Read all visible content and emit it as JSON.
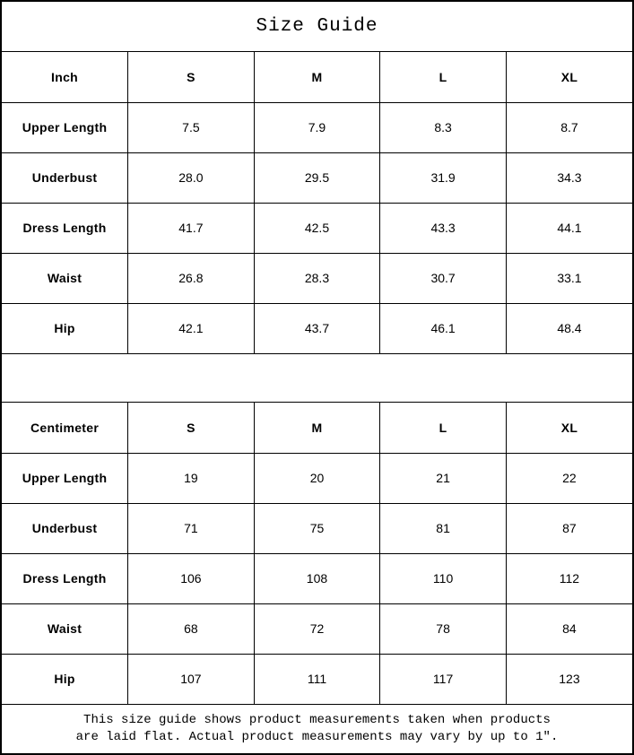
{
  "title": "Size Guide",
  "colors": {
    "background": "#ffffff",
    "border": "#000000",
    "text": "#000000"
  },
  "tables": [
    {
      "unit_label": "Inch",
      "columns": [
        "S",
        "M",
        "L",
        "XL"
      ],
      "rows": [
        {
          "label": "Upper Length",
          "values": [
            "7.5",
            "7.9",
            "8.3",
            "8.7"
          ]
        },
        {
          "label": "Underbust",
          "values": [
            "28.0",
            "29.5",
            "31.9",
            "34.3"
          ]
        },
        {
          "label": "Dress Length",
          "values": [
            "41.7",
            "42.5",
            "43.3",
            "44.1"
          ]
        },
        {
          "label": "Waist",
          "values": [
            "26.8",
            "28.3",
            "30.7",
            "33.1"
          ]
        },
        {
          "label": "Hip",
          "values": [
            "42.1",
            "43.7",
            "46.1",
            "48.4"
          ]
        }
      ]
    },
    {
      "unit_label": "Centimeter",
      "columns": [
        "S",
        "M",
        "L",
        "XL"
      ],
      "rows": [
        {
          "label": "Upper Length",
          "values": [
            "19",
            "20",
            "21",
            "22"
          ]
        },
        {
          "label": "Underbust",
          "values": [
            "71",
            "75",
            "81",
            "87"
          ]
        },
        {
          "label": "Dress Length",
          "values": [
            "106",
            "108",
            "110",
            "112"
          ]
        },
        {
          "label": "Waist",
          "values": [
            "68",
            "72",
            "78",
            "84"
          ]
        },
        {
          "label": "Hip",
          "values": [
            "107",
            "111",
            "117",
            "123"
          ]
        }
      ]
    }
  ],
  "footer": {
    "line1": "This size guide shows product measurements taken when products",
    "line2": "are laid flat. Actual product measurements may vary by up to 1″."
  }
}
